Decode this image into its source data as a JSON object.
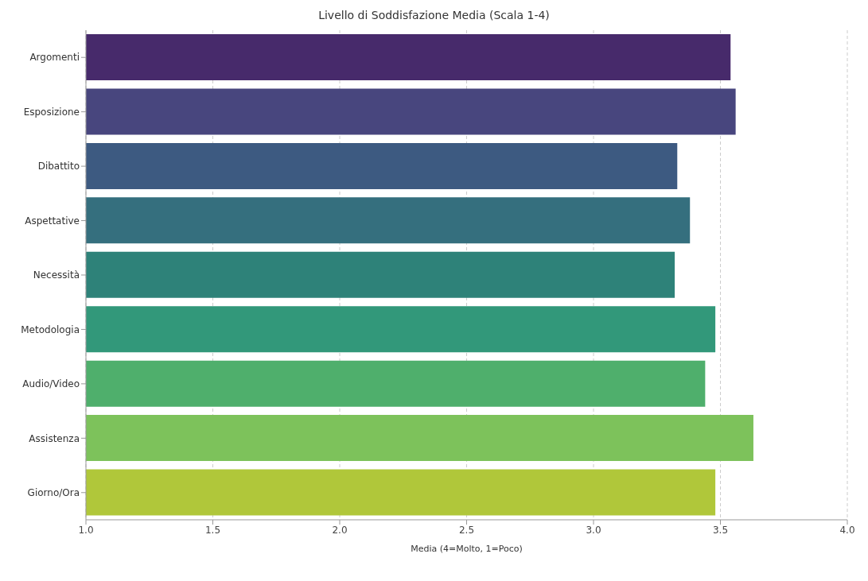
{
  "chart_data": {
    "type": "bar",
    "orientation": "horizontal",
    "title": "Livello di Soddisfazione Media (Scala 1-4)",
    "xlabel": "Media (4=Molto, 1=Poco)",
    "categories": [
      "Argomenti",
      "Esposizione",
      "Dibattito",
      "Aspettative",
      "Necessità",
      "Metodologia",
      "Audio/Video",
      "Assistenza",
      "Giorno/Ora"
    ],
    "values": [
      3.54,
      3.56,
      3.33,
      3.38,
      3.32,
      3.48,
      3.44,
      3.63,
      3.48
    ],
    "colors": [
      "#472a6b",
      "#48467e",
      "#3d5a81",
      "#356f7e",
      "#2e8279",
      "#32987a",
      "#4faf6c",
      "#7dc25b",
      "#b0c73a"
    ],
    "xlim": [
      1.0,
      4.0
    ],
    "xticks": [
      {
        "value": 1.0,
        "label": "1.0"
      },
      {
        "value": 1.5,
        "label": "1.5"
      },
      {
        "value": 2.0,
        "label": "2.0"
      },
      {
        "value": 2.5,
        "label": "2.5"
      },
      {
        "value": 3.0,
        "label": "3.0"
      },
      {
        "value": 3.5,
        "label": "3.5"
      },
      {
        "value": 4.0,
        "label": "4.0"
      }
    ],
    "grid": "x"
  }
}
